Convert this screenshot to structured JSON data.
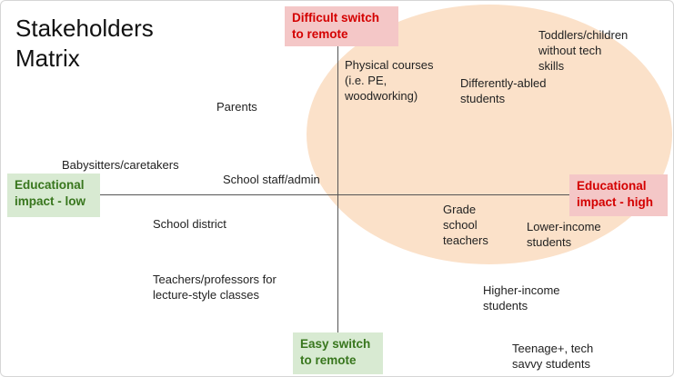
{
  "title": "Stakeholders\nMatrix",
  "axes": {
    "top": "Difficult switch\nto remote",
    "bottom": "Easy switch\nto remote",
    "left": "Educational\nimpact - low",
    "right": "Educational\nimpact - high"
  },
  "stakeholders": {
    "parents": "Parents",
    "babysitters": "Babysitters/caretakers",
    "school_staff": "School staff/admin",
    "school_district": "School district",
    "lecture_teachers": "Teachers/professors for\nlecture-style classes",
    "physical_courses": "Physical courses\n(i.e. PE,\nwoodworking)",
    "differently_abled": "Differently-abled\nstudents",
    "toddlers": "Toddlers/children\nwithout tech\nskills",
    "grade_school_teachers": "Grade\nschool\nteachers",
    "lower_income": "Lower-income\nstudents",
    "higher_income": "Higher-income\nstudents",
    "teenage": "Teenage+, tech\nsavvy students"
  },
  "colors": {
    "highlight": "#fbe1c9",
    "red_box": "#f4c7c7",
    "red_text": "#d40000",
    "green_box": "#d8ead2",
    "green_text": "#38761d"
  }
}
